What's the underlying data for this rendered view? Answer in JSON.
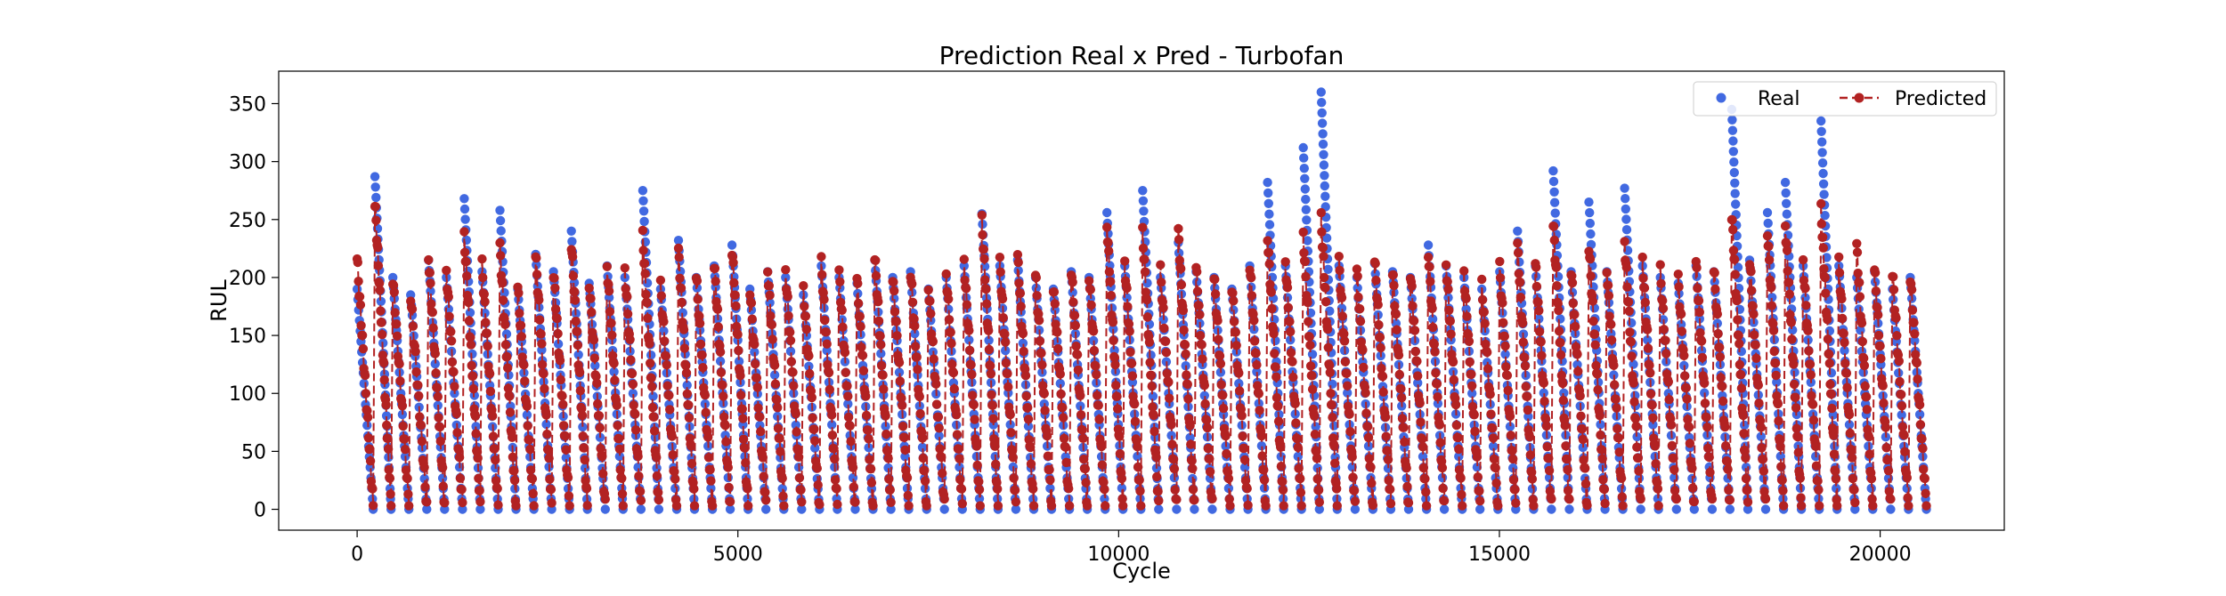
{
  "chart_data": {
    "type": "line",
    "title": "Prediction Real x Pred - Turbofan",
    "xlabel": "Cycle",
    "ylabel": "RUL",
    "xlim": [
      -1030,
      21630
    ],
    "ylim": [
      -18,
      378
    ],
    "xticks": [
      0,
      5000,
      10000,
      15000,
      20000
    ],
    "yticks": [
      0,
      50,
      100,
      150,
      200,
      250,
      300,
      350
    ],
    "legend": {
      "placement": "top-right"
    },
    "colors": {
      "real": "#4169E1",
      "predicted": "#B22222"
    },
    "series": [
      {
        "name": "Real",
        "style": "markers",
        "color": "#4169E1",
        "peaks": [
          190,
          287,
          200,
          185,
          215,
          200,
          268,
          205,
          258,
          190,
          220,
          205,
          240,
          195,
          210,
          200,
          275,
          190,
          232,
          200,
          210,
          228,
          190,
          205,
          200,
          185,
          210,
          200,
          195,
          215,
          200,
          205,
          190,
          200,
          210,
          255,
          210,
          215,
          200,
          190,
          205,
          200,
          256,
          210,
          275,
          200,
          230,
          205,
          200,
          190,
          210,
          282,
          210,
          312,
          360,
          210,
          200,
          212,
          205,
          200,
          228,
          210,
          200,
          190,
          205,
          240,
          210,
          292,
          205,
          265,
          205,
          277,
          210,
          200,
          195,
          210,
          205,
          345,
          215,
          256,
          282,
          210,
          335,
          210,
          200,
          205,
          190,
          200
        ],
        "mins": [
          0
        ]
      },
      {
        "name": "Predicted",
        "style": "dashed-line-with-markers",
        "color": "#B22222",
        "peaks": [
          216,
          265,
          200,
          185,
          218,
          205,
          235,
          210,
          225,
          190,
          220,
          205,
          230,
          195,
          210,
          205,
          235,
          192,
          222,
          200,
          212,
          225,
          190,
          207,
          205,
          188,
          212,
          202,
          198,
          218,
          202,
          206,
          193,
          203,
          212,
          248,
          212,
          217,
          203,
          192,
          208,
          202,
          245,
          212,
          238,
          205,
          238,
          208,
          202,
          193,
          212,
          235,
          213,
          235,
          250,
          213,
          205,
          215,
          207,
          205,
          222,
          212,
          203,
          193,
          208,
          226,
          212,
          248,
          208,
          228,
          207,
          230,
          213,
          205,
          198,
          212,
          207,
          255,
          217,
          240,
          245,
          212,
          258,
          212,
          226,
          207,
          205,
          202
        ],
        "mins": [
          3
        ]
      }
    ],
    "x_range": [
      0,
      20630
    ]
  }
}
